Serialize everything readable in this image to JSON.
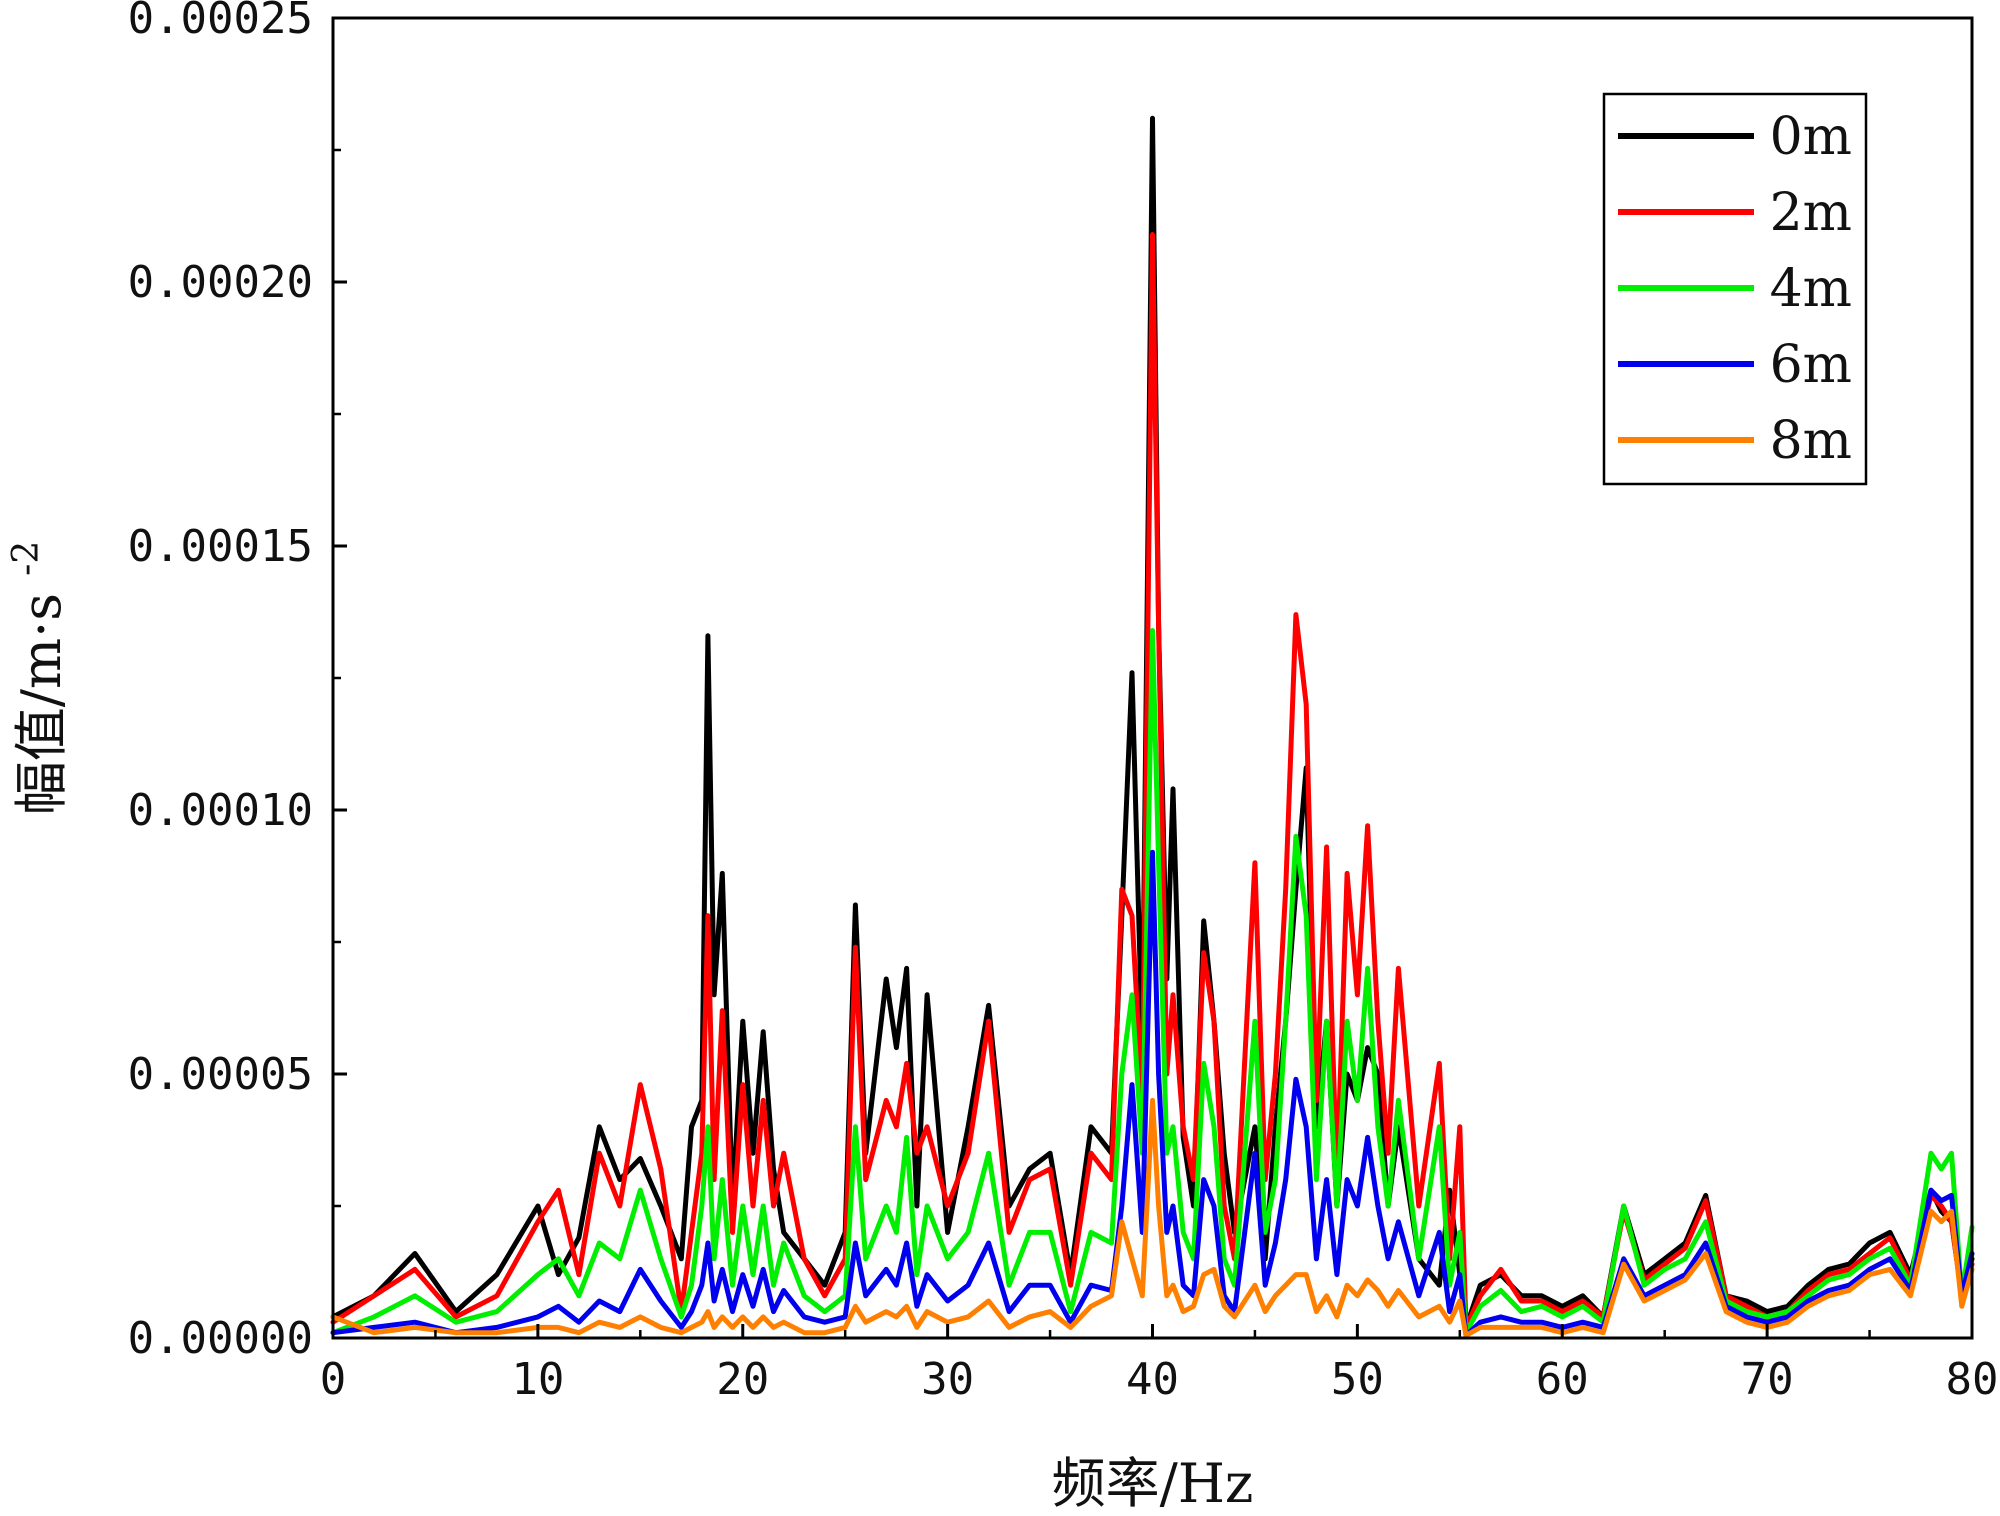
{
  "chart_data": {
    "type": "line",
    "xlabel": "频率/Hz",
    "ylabel": "幅值/m·s",
    "ylabel_superscript": "-2",
    "xlim": [
      0,
      80
    ],
    "ylim": [
      0,
      0.00025
    ],
    "x_ticks": [
      0,
      10,
      20,
      30,
      40,
      50,
      60,
      70,
      80
    ],
    "x_tick_labels": [
      "0",
      "10",
      "20",
      "30",
      "40",
      "50",
      "60",
      "70",
      "80"
    ],
    "y_ticks": [
      0,
      5e-05,
      0.0001,
      0.00015,
      0.0002,
      0.00025
    ],
    "y_tick_labels": [
      "0.00000",
      "0.00005",
      "0.00010",
      "0.00015",
      "0.00020",
      "0.00025"
    ],
    "grid": false,
    "legend_position": "top-right",
    "x": [
      0,
      2,
      4,
      6,
      8,
      10,
      11,
      12,
      13,
      14,
      15,
      16,
      17,
      17.5,
      18,
      18.3,
      18.6,
      19,
      19.5,
      20,
      20.5,
      21,
      21.5,
      22,
      23,
      24,
      25,
      25.5,
      26,
      27,
      27.5,
      28,
      28.5,
      29,
      30,
      31,
      32,
      33,
      34,
      35,
      36,
      37,
      38,
      38.5,
      39,
      39.5,
      40,
      40.3,
      40.7,
      41,
      41.5,
      42,
      42.5,
      43,
      43.5,
      44,
      45,
      45.5,
      46,
      46.5,
      47,
      47.5,
      48,
      48.5,
      49,
      49.5,
      50,
      50.5,
      51,
      51.5,
      52,
      53,
      54,
      54.5,
      55,
      55.3,
      56,
      57,
      58,
      59,
      60,
      61,
      62,
      63,
      64,
      65,
      66,
      67,
      68,
      69,
      70,
      71,
      72,
      73,
      74,
      75,
      76,
      77,
      78,
      78.5,
      79,
      79.5,
      80
    ],
    "series": [
      {
        "name": "0m",
        "color": "#000000",
        "values": [
          4e-06,
          8e-06,
          1.6e-05,
          5e-06,
          1.2e-05,
          2.5e-05,
          1.2e-05,
          1.9e-05,
          4e-05,
          3e-05,
          3.4e-05,
          2.5e-05,
          1.5e-05,
          4e-05,
          4.5e-05,
          0.000133,
          6.5e-05,
          8.8e-05,
          2.5e-05,
          6e-05,
          3.5e-05,
          5.8e-05,
          3.2e-05,
          2e-05,
          1.5e-05,
          1e-05,
          2e-05,
          8.2e-05,
          3.5e-05,
          6.8e-05,
          5.5e-05,
          7e-05,
          2.5e-05,
          6.5e-05,
          2e-05,
          4e-05,
          6.3e-05,
          2.5e-05,
          3.2e-05,
          3.5e-05,
          1.2e-05,
          4e-05,
          3.5e-05,
          8e-05,
          0.000126,
          5.5e-05,
          0.000231,
          0.000135,
          6.8e-05,
          0.000104,
          3.8e-05,
          2.5e-05,
          7.9e-05,
          6e-05,
          3.5e-05,
          2e-05,
          4e-05,
          1.5e-05,
          4e-05,
          6e-05,
          8.5e-05,
          0.000108,
          4e-05,
          6e-05,
          2.5e-05,
          5e-05,
          4.5e-05,
          5.5e-05,
          5e-05,
          2.5e-05,
          4e-05,
          1.5e-05,
          1e-05,
          2.8e-05,
          1.2e-05,
          2e-06,
          1e-05,
          1.2e-05,
          8e-06,
          8e-06,
          6e-06,
          8e-06,
          4e-06,
          2.5e-05,
          1.2e-05,
          1.5e-05,
          1.8e-05,
          2.7e-05,
          8e-06,
          7e-06,
          5e-06,
          6e-06,
          1e-05,
          1.3e-05,
          1.4e-05,
          1.8e-05,
          2e-05,
          1.2e-05,
          2.8e-05,
          2.4e-05,
          2.2e-05,
          8e-06,
          1.5e-05
        ]
      },
      {
        "name": "2m",
        "color": "#ff0000",
        "values": [
          3e-06,
          8e-06,
          1.3e-05,
          4e-06,
          8e-06,
          2.2e-05,
          2.8e-05,
          1.2e-05,
          3.5e-05,
          2.5e-05,
          4.8e-05,
          3.2e-05,
          5e-06,
          2e-05,
          3.5e-05,
          8e-05,
          3e-05,
          6.2e-05,
          2e-05,
          4.8e-05,
          2.5e-05,
          4.5e-05,
          2.5e-05,
          3.5e-05,
          1.5e-05,
          8e-06,
          1.5e-05,
          7.4e-05,
          3e-05,
          4.5e-05,
          4e-05,
          5.2e-05,
          3.5e-05,
          4e-05,
          2.5e-05,
          3.5e-05,
          6e-05,
          2e-05,
          3e-05,
          3.2e-05,
          1e-05,
          3.5e-05,
          3e-05,
          8.5e-05,
          8e-05,
          4.5e-05,
          0.000209,
          0.000135,
          5e-05,
          6.5e-05,
          4e-05,
          3e-05,
          7.3e-05,
          6e-05,
          2.5e-05,
          1.5e-05,
          9e-05,
          3e-05,
          5e-05,
          8.5e-05,
          0.000137,
          0.00012,
          4.5e-05,
          9.3e-05,
          3e-05,
          8.8e-05,
          6.5e-05,
          9.7e-05,
          6e-05,
          3.5e-05,
          7e-05,
          2.5e-05,
          5.2e-05,
          1.5e-05,
          4e-05,
          2e-06,
          8e-06,
          1.3e-05,
          7e-06,
          7e-06,
          5e-06,
          7e-06,
          4e-06,
          2.4e-05,
          1.1e-05,
          1.4e-05,
          1.7e-05,
          2.6e-05,
          8e-06,
          6e-06,
          4e-06,
          5e-06,
          9e-06,
          1.2e-05,
          1.3e-05,
          1.6e-05,
          1.9e-05,
          1.1e-05,
          2.7e-05,
          2.5e-05,
          2.2e-05,
          8e-06,
          1.4e-05
        ]
      },
      {
        "name": "4m",
        "color": "#00ee00",
        "values": [
          1e-06,
          4e-06,
          8e-06,
          3e-06,
          5e-06,
          1.2e-05,
          1.5e-05,
          8e-06,
          1.8e-05,
          1.5e-05,
          2.8e-05,
          1.5e-05,
          4e-06,
          1e-05,
          2.5e-05,
          4e-05,
          1.5e-05,
          3e-05,
          1e-05,
          2.5e-05,
          1.2e-05,
          2.5e-05,
          1e-05,
          1.8e-05,
          8e-06,
          5e-06,
          8e-06,
          4e-05,
          1.5e-05,
          2.5e-05,
          2e-05,
          3.8e-05,
          1.2e-05,
          2.5e-05,
          1.5e-05,
          2e-05,
          3.5e-05,
          1e-05,
          2e-05,
          2e-05,
          5e-06,
          2e-05,
          1.8e-05,
          5e-05,
          6.5e-05,
          3.5e-05,
          0.000134,
          9e-05,
          3.5e-05,
          4e-05,
          2e-05,
          1.5e-05,
          5.2e-05,
          4e-05,
          1.5e-05,
          1e-05,
          6e-05,
          2e-05,
          3e-05,
          6e-05,
          9.5e-05,
          8e-05,
          3e-05,
          6e-05,
          2.5e-05,
          6e-05,
          4.5e-05,
          7e-05,
          4e-05,
          2.5e-05,
          4.5e-05,
          1.5e-05,
          4e-05,
          1e-05,
          2e-05,
          1e-06,
          6e-06,
          9e-06,
          5e-06,
          6e-06,
          4e-06,
          6e-06,
          3e-06,
          2.5e-05,
          1e-05,
          1.3e-05,
          1.5e-05,
          2.2e-05,
          7e-06,
          5e-06,
          4e-06,
          5e-06,
          8e-06,
          1.1e-05,
          1.2e-05,
          1.5e-05,
          1.7e-05,
          1e-05,
          3.5e-05,
          3.2e-05,
          3.5e-05,
          8e-06,
          2.1e-05
        ]
      },
      {
        "name": "6m",
        "color": "#0000ee",
        "values": [
          1e-06,
          2e-06,
          3e-06,
          1e-06,
          2e-06,
          4e-06,
          6e-06,
          3e-06,
          7e-06,
          5e-06,
          1.3e-05,
          7e-06,
          2e-06,
          5e-06,
          1e-05,
          1.8e-05,
          7e-06,
          1.3e-05,
          5e-06,
          1.2e-05,
          6e-06,
          1.3e-05,
          5e-06,
          9e-06,
          4e-06,
          3e-06,
          4e-06,
          1.8e-05,
          8e-06,
          1.3e-05,
          1e-05,
          1.8e-05,
          6e-06,
          1.2e-05,
          7e-06,
          1e-05,
          1.8e-05,
          5e-06,
          1e-05,
          1e-05,
          3e-06,
          1e-05,
          9e-06,
          2.5e-05,
          4.8e-05,
          2e-05,
          9.2e-05,
          5e-05,
          2e-05,
          2.5e-05,
          1e-05,
          8e-06,
          3e-05,
          2.5e-05,
          8e-06,
          5e-06,
          3.5e-05,
          1e-05,
          1.8e-05,
          3e-05,
          4.9e-05,
          4e-05,
          1.5e-05,
          3e-05,
          1.2e-05,
          3e-05,
          2.5e-05,
          3.8e-05,
          2.5e-05,
          1.5e-05,
          2.2e-05,
          8e-06,
          2e-05,
          5e-06,
          1.2e-05,
          5e-07,
          3e-06,
          4e-06,
          3e-06,
          3e-06,
          2e-06,
          3e-06,
          2e-06,
          1.5e-05,
          8e-06,
          1e-05,
          1.2e-05,
          1.8e-05,
          6e-06,
          4e-06,
          3e-06,
          4e-06,
          7e-06,
          9e-06,
          1e-05,
          1.3e-05,
          1.5e-05,
          9e-06,
          2.8e-05,
          2.6e-05,
          2.7e-05,
          8e-06,
          1.6e-05
        ]
      },
      {
        "name": "8m",
        "color": "#ff8000",
        "values": [
          4e-06,
          1e-06,
          2e-06,
          1e-06,
          1e-06,
          2e-06,
          2e-06,
          1e-06,
          3e-06,
          2e-06,
          4e-06,
          2e-06,
          1e-06,
          2e-06,
          3e-06,
          5e-06,
          2e-06,
          4e-06,
          2e-06,
          4e-06,
          2e-06,
          4e-06,
          2e-06,
          3e-06,
          1e-06,
          1e-06,
          2e-06,
          6e-06,
          3e-06,
          5e-06,
          4e-06,
          6e-06,
          2e-06,
          5e-06,
          3e-06,
          4e-06,
          7e-06,
          2e-06,
          4e-06,
          5e-06,
          2e-06,
          6e-06,
          8e-06,
          2.2e-05,
          1.5e-05,
          8e-06,
          4.5e-05,
          2.5e-05,
          8e-06,
          1e-05,
          5e-06,
          6e-06,
          1.2e-05,
          1.3e-05,
          6e-06,
          4e-06,
          1e-05,
          5e-06,
          8e-06,
          1e-05,
          1.2e-05,
          1.2e-05,
          5e-06,
          8e-06,
          4e-06,
          1e-05,
          8e-06,
          1.1e-05,
          9e-06,
          6e-06,
          9e-06,
          4e-06,
          6e-06,
          3e-06,
          7e-06,
          5e-07,
          2e-06,
          2e-06,
          2e-06,
          2e-06,
          1e-06,
          2e-06,
          1e-06,
          1.4e-05,
          7e-06,
          9e-06,
          1.1e-05,
          1.6e-05,
          5e-06,
          3e-06,
          2e-06,
          3e-06,
          6e-06,
          8e-06,
          9e-06,
          1.2e-05,
          1.3e-05,
          8e-06,
          2.4e-05,
          2.2e-05,
          2.4e-05,
          6e-06,
          1.3e-05
        ]
      }
    ]
  }
}
